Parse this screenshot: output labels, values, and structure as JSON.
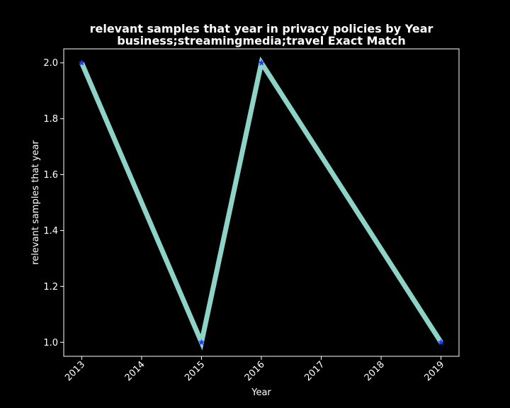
{
  "chart_data": {
    "type": "line",
    "title": "relevant samples that year in privacy policies by Year",
    "subtitle": "business;streamingmedia;travel Exact Match",
    "xlabel": "Year",
    "ylabel": "relevant samples that year",
    "x": [
      2013,
      2015,
      2016,
      2019
    ],
    "y": [
      2.0,
      1.0,
      2.0,
      1.0
    ],
    "x_ticks": [
      "2013",
      "2014",
      "2015",
      "2016",
      "2017",
      "2018",
      "2019"
    ],
    "y_ticks": [
      "1.0",
      "1.2",
      "1.4",
      "1.6",
      "1.8",
      "2.0"
    ],
    "xlim": [
      2012.7,
      2019.3
    ],
    "ylim": [
      0.95,
      2.05
    ],
    "grid": false,
    "colors": {
      "background": "#000000",
      "line": "#8dd3c7",
      "marker": "#1f3cff",
      "text": "#ffffff",
      "axes": "#ffffff"
    }
  }
}
